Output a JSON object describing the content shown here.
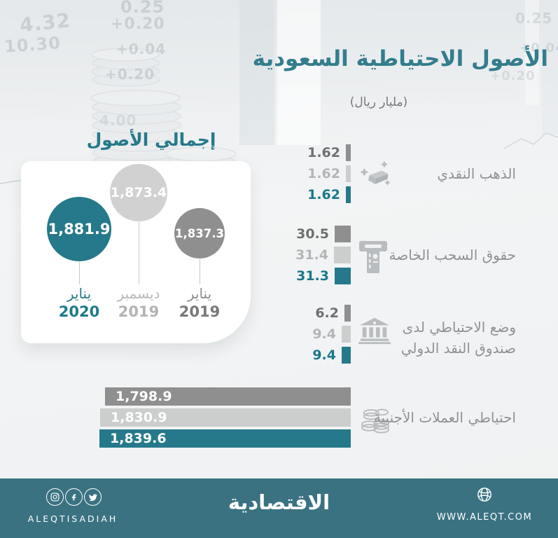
{
  "header": {
    "title": "الأصول الاحتياطية السعودية",
    "unit": "(مليار ريال)"
  },
  "totals": {
    "heading": "إجمالي الأصول",
    "circles": [
      {
        "value": "1,881.9",
        "month": "يناير",
        "year": "2020",
        "color": "#26798a"
      },
      {
        "value": "1,873.4",
        "month": "ديسمبر",
        "year": "2019",
        "color": "#d1d1d1"
      },
      {
        "value": "1,837.3",
        "month": "يناير",
        "year": "2019",
        "color": "#8f8f8f"
      }
    ]
  },
  "groups": [
    {
      "label": "الذهب النقدي",
      "icon": "gold-bars-icon",
      "values": [
        "1.62",
        "1.62",
        "1.62"
      ]
    },
    {
      "label": "حقوق السحب الخاصة",
      "icon": "cash-dispenser-icon",
      "values": [
        "30.5",
        "31.4",
        "31.3"
      ]
    },
    {
      "label": "وضع الاحتياطي لدى",
      "label2": "صندوق النقد الدولي",
      "icon": "bank-icon",
      "values": [
        "6.2",
        "9.4",
        "9.4"
      ]
    },
    {
      "label": "احتياطي العملات الأجنبية",
      "icon": "coins-icon",
      "values": [
        "1,798.9",
        "1,830.9",
        "1,839.6"
      ]
    }
  ],
  "chart_data": {
    "type": "bar",
    "orientation": "horizontal",
    "direction": "rtl",
    "title": "الأصول الاحتياطية السعودية",
    "unit": "مليار ريال",
    "categories": [
      "الذهب النقدي",
      "حقوق السحب الخاصة",
      "وضع الاحتياطي لدى صندوق النقد الدولي",
      "احتياطي العملات الأجنبية"
    ],
    "series": [
      {
        "name": "يناير 2019",
        "color": "#8f8f8f",
        "values": [
          1.62,
          30.5,
          6.2,
          1798.9
        ],
        "total": 1837.3
      },
      {
        "name": "ديسمبر 2019",
        "color": "#cccdcd",
        "values": [
          1.62,
          31.4,
          9.4,
          1830.9
        ],
        "total": 1873.4
      },
      {
        "name": "يناير 2020",
        "color": "#26798a",
        "values": [
          1.62,
          31.3,
          9.4,
          1839.6
        ],
        "total": 1881.9
      }
    ],
    "totals_title": "إجمالي الأصول",
    "value_labels": true,
    "legend_position": "circles-left"
  },
  "colors": {
    "accent": "#26798a",
    "title": "#337d8d",
    "dark_gray": "#8f8f8f",
    "light_gray": "#cccdcd",
    "footer": "#3a7282"
  },
  "footer": {
    "handle": "ALEQTISADIAH",
    "logo": "الاقتصادية",
    "website": "WWW.ALEQT.COM",
    "social": [
      "instagram",
      "facebook",
      "twitter"
    ]
  },
  "background": {
    "ticker": [
      "0.25",
      "4.32",
      "+0.20",
      "10.30",
      "+0.04",
      "+0.20",
      "4.00",
      "0.25",
      "+0.04",
      "+0.20"
    ]
  }
}
